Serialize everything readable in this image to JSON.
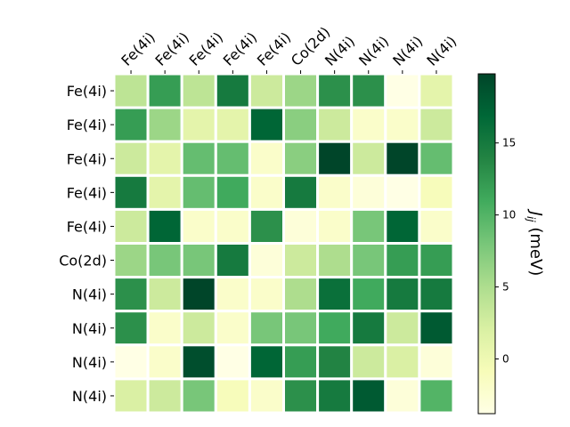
{
  "chart_data": {
    "type": "heatmap",
    "title": "",
    "row_labels": [
      "Fe(4i)",
      "Fe(4i)",
      "Fe(4i)",
      "Fe(4i)",
      "Fe(4i)",
      "Co(2d)",
      "N(4i)",
      "N(4i)",
      "N(4i)",
      "N(4i)"
    ],
    "col_labels": [
      "Fe(4i)",
      "Fe(4i)",
      "Fe(4i)",
      "Fe(4i)",
      "Fe(4i)",
      "Co(2d)",
      "N(4i)",
      "N(4i)",
      "N(4i)",
      "N(4i)"
    ],
    "values": [
      [
        4,
        12,
        4,
        15,
        3,
        6,
        13,
        13,
        -4,
        1
      ],
      [
        12,
        6,
        1,
        1,
        17,
        7,
        3,
        -2,
        -2,
        3
      ],
      [
        3,
        1,
        9,
        9,
        -2,
        7,
        20,
        3,
        20,
        9
      ],
      [
        15,
        1,
        9,
        11,
        -2,
        15,
        -2,
        -3,
        -4,
        -1
      ],
      [
        3,
        17,
        -2,
        -2,
        13,
        -3,
        -2,
        8,
        17,
        -2
      ],
      [
        6,
        8,
        8,
        15,
        -3,
        3,
        5,
        8,
        12,
        12
      ],
      [
        13,
        3,
        20,
        -2,
        -2,
        5,
        16,
        11,
        15,
        15
      ],
      [
        13,
        -2,
        3,
        -2,
        8,
        8,
        11,
        15,
        3,
        18
      ],
      [
        -4,
        -2,
        19,
        -4,
        17,
        12,
        14,
        3,
        2,
        -3
      ],
      [
        2,
        3,
        8,
        -1,
        -2,
        13,
        15,
        18,
        -3,
        10
      ]
    ],
    "colorbar": {
      "label": "J_ij (meV)",
      "min": -3.8,
      "max": 19.8,
      "ticks": [
        0,
        5,
        10,
        15
      ],
      "colormap": "YlGn",
      "colormap_stops": [
        "#ffffe5",
        "#f7fcb9",
        "#d9f0a3",
        "#addd8e",
        "#78c679",
        "#41ab5d",
        "#238443",
        "#006837",
        "#004529"
      ]
    },
    "cell_border_color": "#ffffff"
  }
}
